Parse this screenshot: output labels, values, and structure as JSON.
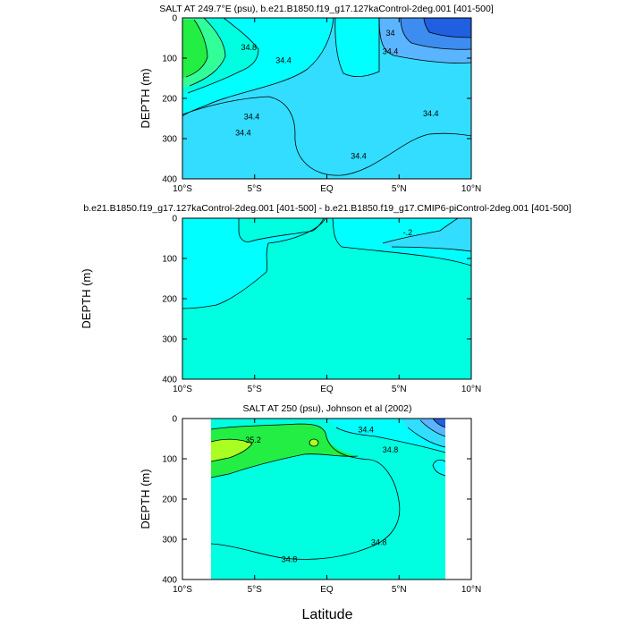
{
  "colors": {
    "frame": "#000000",
    "s_deep_blue": "#1f5fe0",
    "s_blue": "#3d8cf0",
    "s_mid_blue": "#5bb4ff",
    "s_light_blue": "#33ddff",
    "s_cyan": "#00ffff",
    "s_teal": "#00ffe0",
    "s_green_light": "#33ff99",
    "s_green": "#22ee44",
    "s_yellow_green": "#aaff22",
    "background_missing": "#ffffff"
  },
  "x_axis_label": "Latitude",
  "chart_data": [
    {
      "type": "contour",
      "title": "SALT AT 249.7°E (psu), b.e21.B1850.f19_g17.127kaControl-2deg.001 [401-500]",
      "ylabel": "DEPTH (m)",
      "xlabel": "",
      "xlim": [
        -10,
        10
      ],
      "ylim": [
        400,
        0
      ],
      "x_ticks": [
        -10,
        -5,
        0,
        5,
        10
      ],
      "x_tick_labels": [
        "10°S",
        "5°S",
        "EQ",
        "5°N",
        "10°N"
      ],
      "y_ticks": [
        0,
        100,
        200,
        300,
        400
      ],
      "y_tick_labels": [
        "0",
        "100",
        "200",
        "300",
        "400"
      ],
      "contour_labels": [
        {
          "text": "34.8",
          "lat": -5.4,
          "depth": 75
        },
        {
          "text": "34",
          "lat": 4.4,
          "depth": 40
        },
        {
          "text": "34.4",
          "lat": 4.4,
          "depth": 85
        },
        {
          "text": "34.4",
          "lat": -3.0,
          "depth": 108
        },
        {
          "text": "34.4",
          "lat": -5.2,
          "depth": 248
        },
        {
          "text": "34.4",
          "lat": -5.8,
          "depth": 288
        },
        {
          "text": "34.4",
          "lat": 7.2,
          "depth": 240
        },
        {
          "text": "34.4",
          "lat": 2.2,
          "depth": 345
        }
      ]
    },
    {
      "type": "contour",
      "title": "b.e21.B1850.f19_g17.127kaControl-2deg.001 [401-500] - b.e21.B1850.f19_g17.CMIP6-piControl-2deg.001 [401-500]",
      "ylabel": "DEPTH (m)",
      "xlabel": "",
      "xlim": [
        -10,
        10
      ],
      "ylim": [
        400,
        0
      ],
      "x_ticks": [
        -10,
        -5,
        0,
        5,
        10
      ],
      "x_tick_labels": [
        "10°S",
        "5°S",
        "EQ",
        "5°N",
        "10°N"
      ],
      "y_ticks": [
        0,
        100,
        200,
        300,
        400
      ],
      "y_tick_labels": [
        "0",
        "100",
        "200",
        "300",
        "400"
      ],
      "contour_labels": [
        {
          "text": "-.2",
          "lat": 5.6,
          "depth": 38
        }
      ]
    },
    {
      "type": "contour",
      "title": "SALT AT 250 (psu), Johnson et al (2002)",
      "ylabel": "DEPTH (m)",
      "xlabel": "Latitude",
      "xlim": [
        -10,
        10
      ],
      "ylim": [
        400,
        0
      ],
      "x_ticks": [
        -10,
        -5,
        0,
        5,
        10
      ],
      "x_tick_labels": [
        "10°S",
        "5°S",
        "EQ",
        "5°N",
        "10°N"
      ],
      "y_ticks": [
        0,
        100,
        200,
        300,
        400
      ],
      "y_tick_labels": [
        "0",
        "100",
        "200",
        "300",
        "400"
      ],
      "data_lat_range": [
        -8,
        8
      ],
      "contour_labels": [
        {
          "text": "35.2",
          "lat": -5.1,
          "depth": 55
        },
        {
          "text": "34.4",
          "lat": 2.7,
          "depth": 30
        },
        {
          "text": "34.8",
          "lat": 4.4,
          "depth": 80
        },
        {
          "text": "34.8",
          "lat": 3.6,
          "depth": 310
        },
        {
          "text": "34.8",
          "lat": -2.6,
          "depth": 352
        }
      ]
    }
  ]
}
